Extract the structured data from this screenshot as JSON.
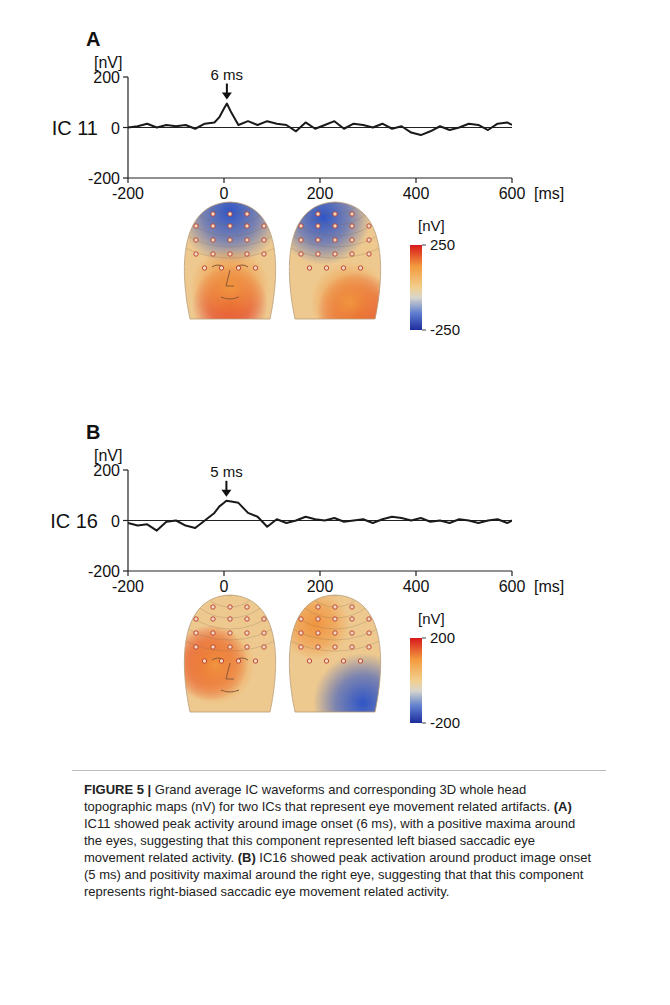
{
  "chart_data": [
    {
      "type": "line",
      "panel": "A",
      "title": "IC 11",
      "color": "#1a1a1a",
      "x": [
        -200,
        -180,
        -160,
        -140,
        -120,
        -100,
        -80,
        -60,
        -40,
        -20,
        -10,
        0,
        6,
        15,
        30,
        50,
        70,
        90,
        110,
        130,
        150,
        170,
        190,
        210,
        230,
        250,
        270,
        290,
        310,
        330,
        350,
        370,
        390,
        410,
        430,
        450,
        470,
        490,
        510,
        530,
        550,
        570,
        590,
        600
      ],
      "values": [
        0,
        5,
        15,
        0,
        10,
        5,
        10,
        -5,
        15,
        20,
        40,
        75,
        95,
        60,
        10,
        25,
        10,
        25,
        15,
        10,
        -15,
        20,
        -5,
        10,
        25,
        -5,
        15,
        10,
        0,
        15,
        -5,
        5,
        -20,
        -30,
        -15,
        5,
        -10,
        0,
        15,
        10,
        -10,
        15,
        20,
        10
      ],
      "xlim": [
        -200,
        600
      ],
      "ylim": [
        -200,
        200
      ],
      "xticks": [
        -200,
        0,
        200,
        400,
        600
      ],
      "yticks": [
        -200,
        0,
        200
      ],
      "grid": true,
      "x_label": "[ms]",
      "y_label": "[nV]",
      "annotations": [
        {
          "text": "6 ms",
          "x": 6
        }
      ],
      "colorbar": {
        "label": "[nV]",
        "range": [
          -250,
          250
        ],
        "ticks": [
          250,
          -250
        ]
      }
    },
    {
      "type": "line",
      "panel": "B",
      "title": "IC 16",
      "color": "#1a1a1a",
      "x": [
        -200,
        -180,
        -160,
        -140,
        -120,
        -100,
        -80,
        -60,
        -40,
        -20,
        -10,
        0,
        5,
        15,
        30,
        50,
        70,
        90,
        110,
        130,
        150,
        170,
        190,
        210,
        230,
        250,
        270,
        290,
        310,
        330,
        350,
        370,
        390,
        410,
        430,
        450,
        470,
        490,
        510,
        530,
        550,
        570,
        590,
        600
      ],
      "values": [
        -10,
        -20,
        -15,
        -40,
        -5,
        0,
        -20,
        -30,
        0,
        30,
        55,
        70,
        78,
        75,
        70,
        30,
        15,
        -25,
        5,
        -10,
        0,
        15,
        5,
        0,
        10,
        -5,
        0,
        5,
        -10,
        5,
        15,
        10,
        0,
        10,
        -5,
        0,
        -10,
        5,
        0,
        -10,
        0,
        5,
        -10,
        0
      ],
      "xlim": [
        -200,
        600
      ],
      "ylim": [
        -200,
        200
      ],
      "xticks": [
        -200,
        0,
        200,
        400,
        600
      ],
      "yticks": [
        -200,
        0,
        200
      ],
      "grid": true,
      "x_label": "[ms]",
      "y_label": "[nV]",
      "annotations": [
        {
          "text": "5 ms",
          "x": 5
        }
      ],
      "colorbar": {
        "label": "[nV]",
        "range": [
          -200,
          200
        ],
        "ticks": [
          200,
          -200
        ]
      }
    }
  ],
  "caption": {
    "figure": "FIGURE 5 |",
    "intro": "Grand average IC waveforms and corresponding 3D whole head topographic maps (nV) for two ICs that represent eye movement related artifacts.",
    "parts": [
      {
        "letter": "(A)",
        "text": "IC11 showed peak activity around image onset (6 ms), with a positive maxima around the eyes, suggesting that this component represented left biased saccadic eye movement related activity."
      },
      {
        "letter": "(B)",
        "text": "IC16 showed peak activation around product image onset (5 ms) and positivity maximal around the right eye, suggesting that that this component represents right-biased saccadic eye movement related activity."
      }
    ]
  }
}
